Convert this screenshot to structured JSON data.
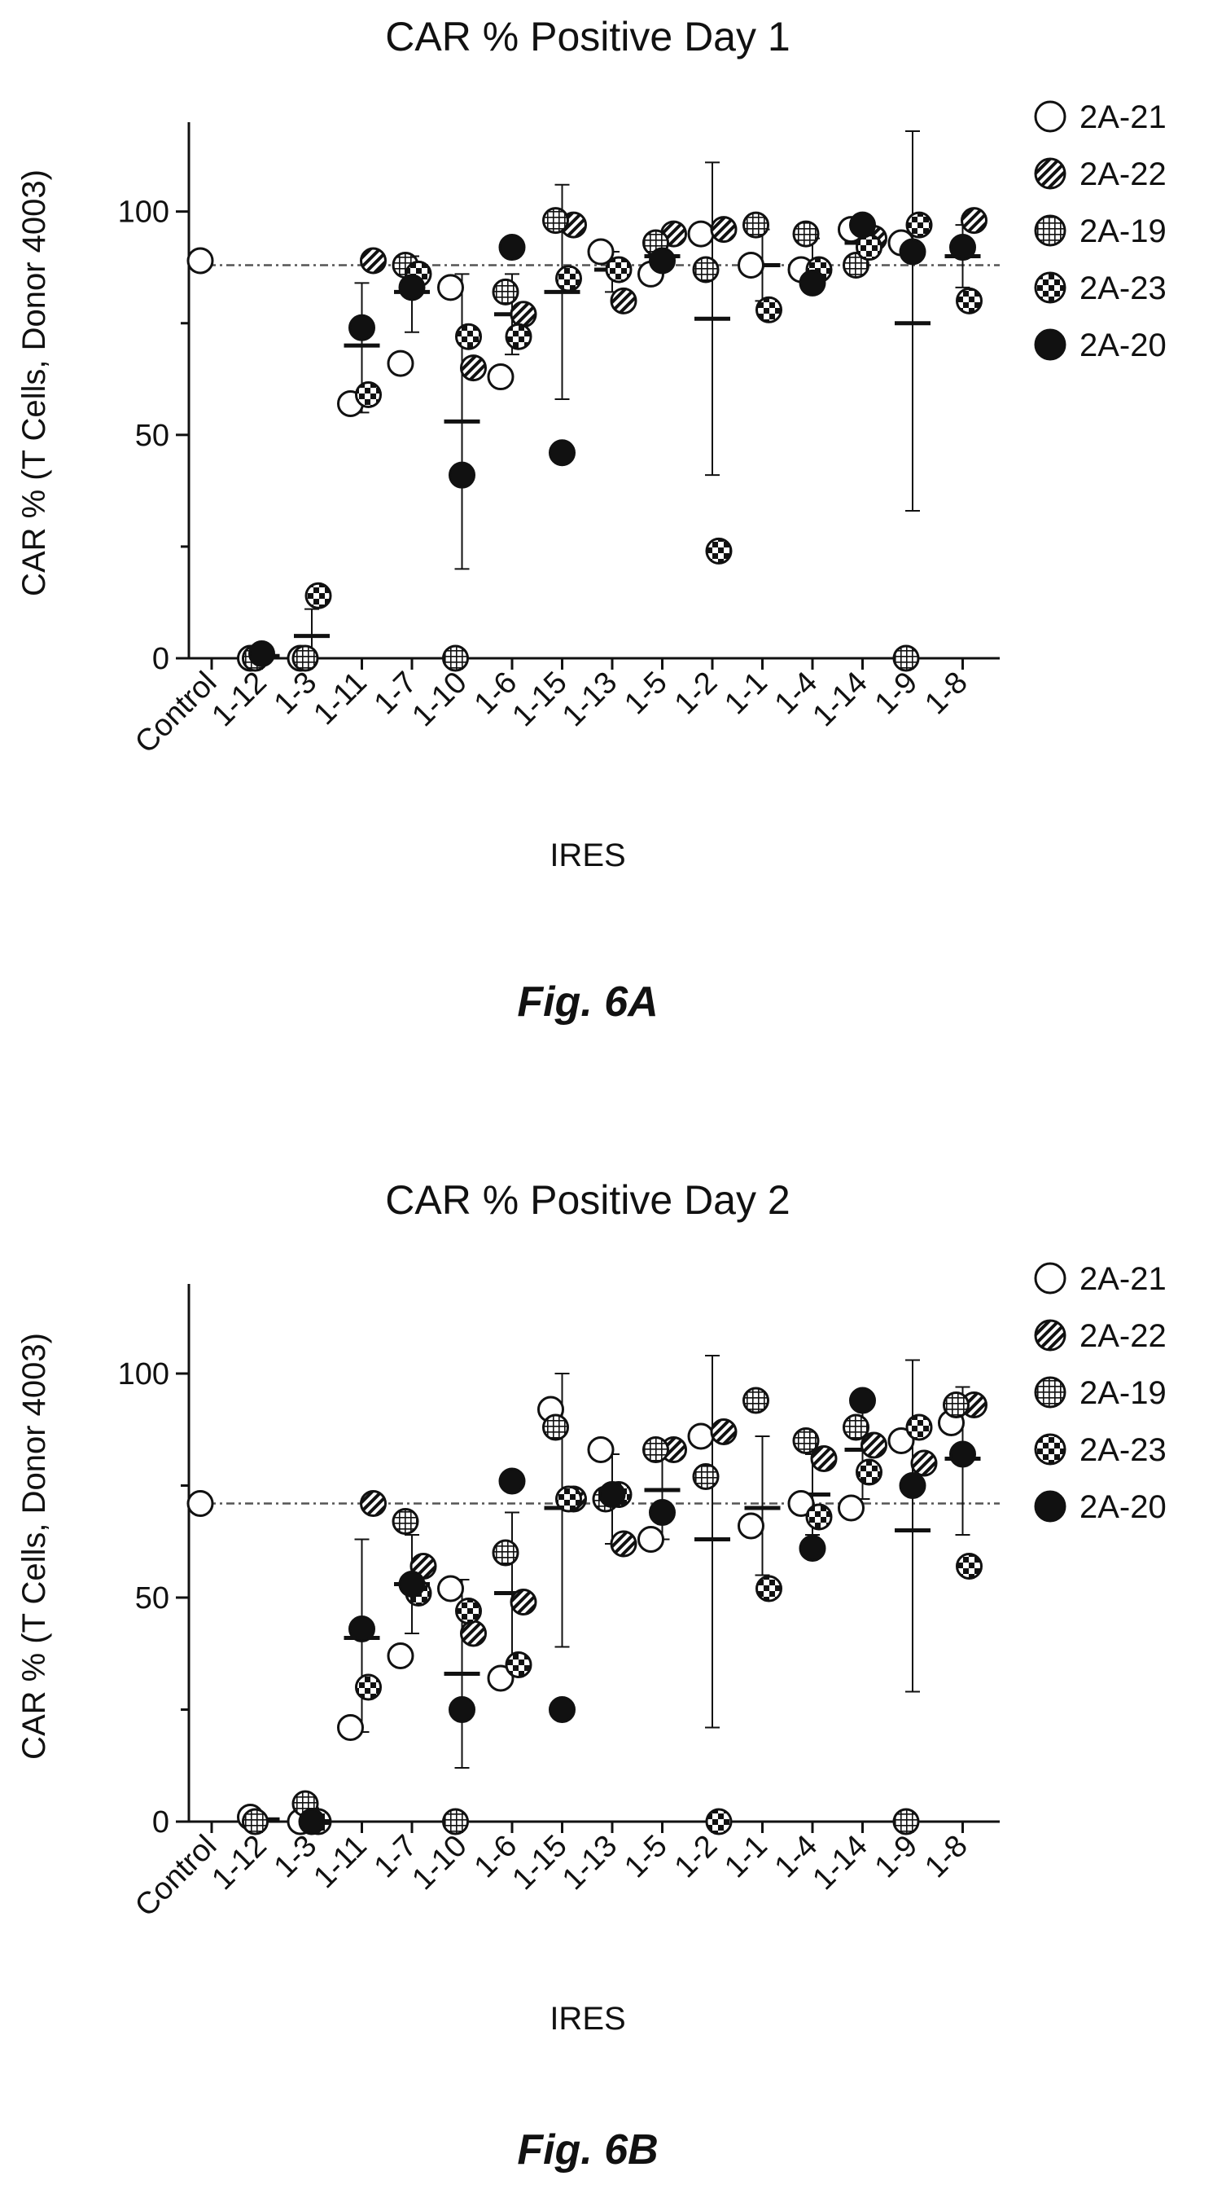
{
  "colors": {
    "ink": "#111111",
    "paper": "#ffffff"
  },
  "chart_data": [
    {
      "type": "scatter",
      "title": "CAR % Positive Day 1",
      "figure_label": "Fig. 6A",
      "xlabel": "IRES",
      "ylabel": "CAR % (T Cells, Donor 4003)",
      "ylim": [
        0,
        120
      ],
      "yticks": [
        0,
        50,
        100
      ],
      "categories": [
        "Control",
        "1-12",
        "1-3",
        "1-11",
        "1-7",
        "1-10",
        "1-6",
        "1-15",
        "1-13",
        "1-5",
        "1-2",
        "1-1",
        "1-4",
        "1-14",
        "1-9",
        "1-8"
      ],
      "reference_line": 88,
      "legend_position": "top-right",
      "series": [
        {
          "name": "2A-21",
          "marker": "open",
          "values": [
            89,
            0,
            0,
            57,
            66,
            83,
            63,
            null,
            91,
            86,
            95,
            88,
            87,
            96,
            93,
            null
          ]
        },
        {
          "name": "2A-22",
          "marker": "hatched",
          "values": [
            null,
            null,
            null,
            89,
            null,
            65,
            77,
            97,
            80,
            95,
            96,
            null,
            null,
            94,
            null,
            98
          ]
        },
        {
          "name": "2A-19",
          "marker": "grid",
          "values": [
            null,
            0,
            0,
            null,
            88,
            0,
            82,
            98,
            null,
            93,
            87,
            97,
            95,
            88,
            0,
            null
          ]
        },
        {
          "name": "2A-23",
          "marker": "checker",
          "values": [
            null,
            null,
            14,
            59,
            86,
            72,
            72,
            85,
            87,
            null,
            24,
            78,
            87,
            92,
            97,
            80
          ]
        },
        {
          "name": "2A-20",
          "marker": "filled",
          "values": [
            null,
            1,
            null,
            74,
            83,
            41,
            92,
            46,
            null,
            89,
            null,
            null,
            84,
            97,
            91,
            92
          ]
        }
      ],
      "summary": {
        "mean": [
          null,
          0.5,
          5,
          70,
          82,
          53,
          77,
          82,
          87,
          90,
          76,
          88,
          88,
          93,
          75,
          90
        ],
        "err_low": [
          null,
          null,
          0,
          55,
          73,
          20,
          68,
          58,
          82,
          87,
          41,
          80,
          84,
          88,
          33,
          83
        ],
        "err_high": [
          null,
          null,
          11,
          84,
          90,
          86,
          86,
          106,
          91,
          94,
          111,
          96,
          94,
          98,
          118,
          97
        ]
      }
    },
    {
      "type": "scatter",
      "title": "CAR % Positive Day 2",
      "figure_label": "Fig. 6B",
      "xlabel": "IRES",
      "ylabel": "CAR % (T Cells, Donor 4003)",
      "ylim": [
        0,
        120
      ],
      "yticks": [
        0,
        50,
        100
      ],
      "categories": [
        "Control",
        "1-12",
        "1-3",
        "1-11",
        "1-7",
        "1-10",
        "1-6",
        "1-15",
        "1-13",
        "1-5",
        "1-2",
        "1-1",
        "1-4",
        "1-14",
        "1-9",
        "1-8"
      ],
      "reference_line": 71,
      "legend_position": "top-right",
      "series": [
        {
          "name": "2A-21",
          "marker": "open",
          "values": [
            71,
            1,
            0,
            21,
            37,
            52,
            32,
            92,
            83,
            63,
            86,
            66,
            71,
            70,
            85,
            89
          ]
        },
        {
          "name": "2A-22",
          "marker": "hatched",
          "values": [
            null,
            null,
            null,
            71,
            57,
            42,
            49,
            72,
            62,
            83,
            87,
            null,
            81,
            84,
            80,
            93
          ]
        },
        {
          "name": "2A-19",
          "marker": "grid",
          "values": [
            null,
            0,
            4,
            null,
            67,
            0,
            60,
            88,
            72,
            83,
            77,
            94,
            85,
            88,
            0,
            93
          ]
        },
        {
          "name": "2A-23",
          "marker": "checker",
          "values": [
            null,
            null,
            0,
            30,
            51,
            47,
            35,
            72,
            73,
            null,
            0,
            52,
            68,
            78,
            88,
            57
          ]
        },
        {
          "name": "2A-20",
          "marker": "filled",
          "values": [
            null,
            null,
            0,
            43,
            53,
            25,
            76,
            25,
            73,
            69,
            null,
            null,
            61,
            94,
            75,
            82
          ]
        }
      ],
      "summary": {
        "mean": [
          null,
          0.5,
          1,
          41,
          53,
          33,
          51,
          70,
          72,
          74,
          63,
          70,
          73,
          83,
          65,
          81
        ],
        "err_low": [
          null,
          null,
          0,
          20,
          42,
          12,
          33,
          39,
          62,
          63,
          21,
          55,
          64,
          72,
          29,
          64
        ],
        "err_high": [
          null,
          null,
          3,
          63,
          64,
          54,
          69,
          100,
          82,
          85,
          104,
          86,
          82,
          94,
          103,
          97
        ]
      }
    }
  ]
}
